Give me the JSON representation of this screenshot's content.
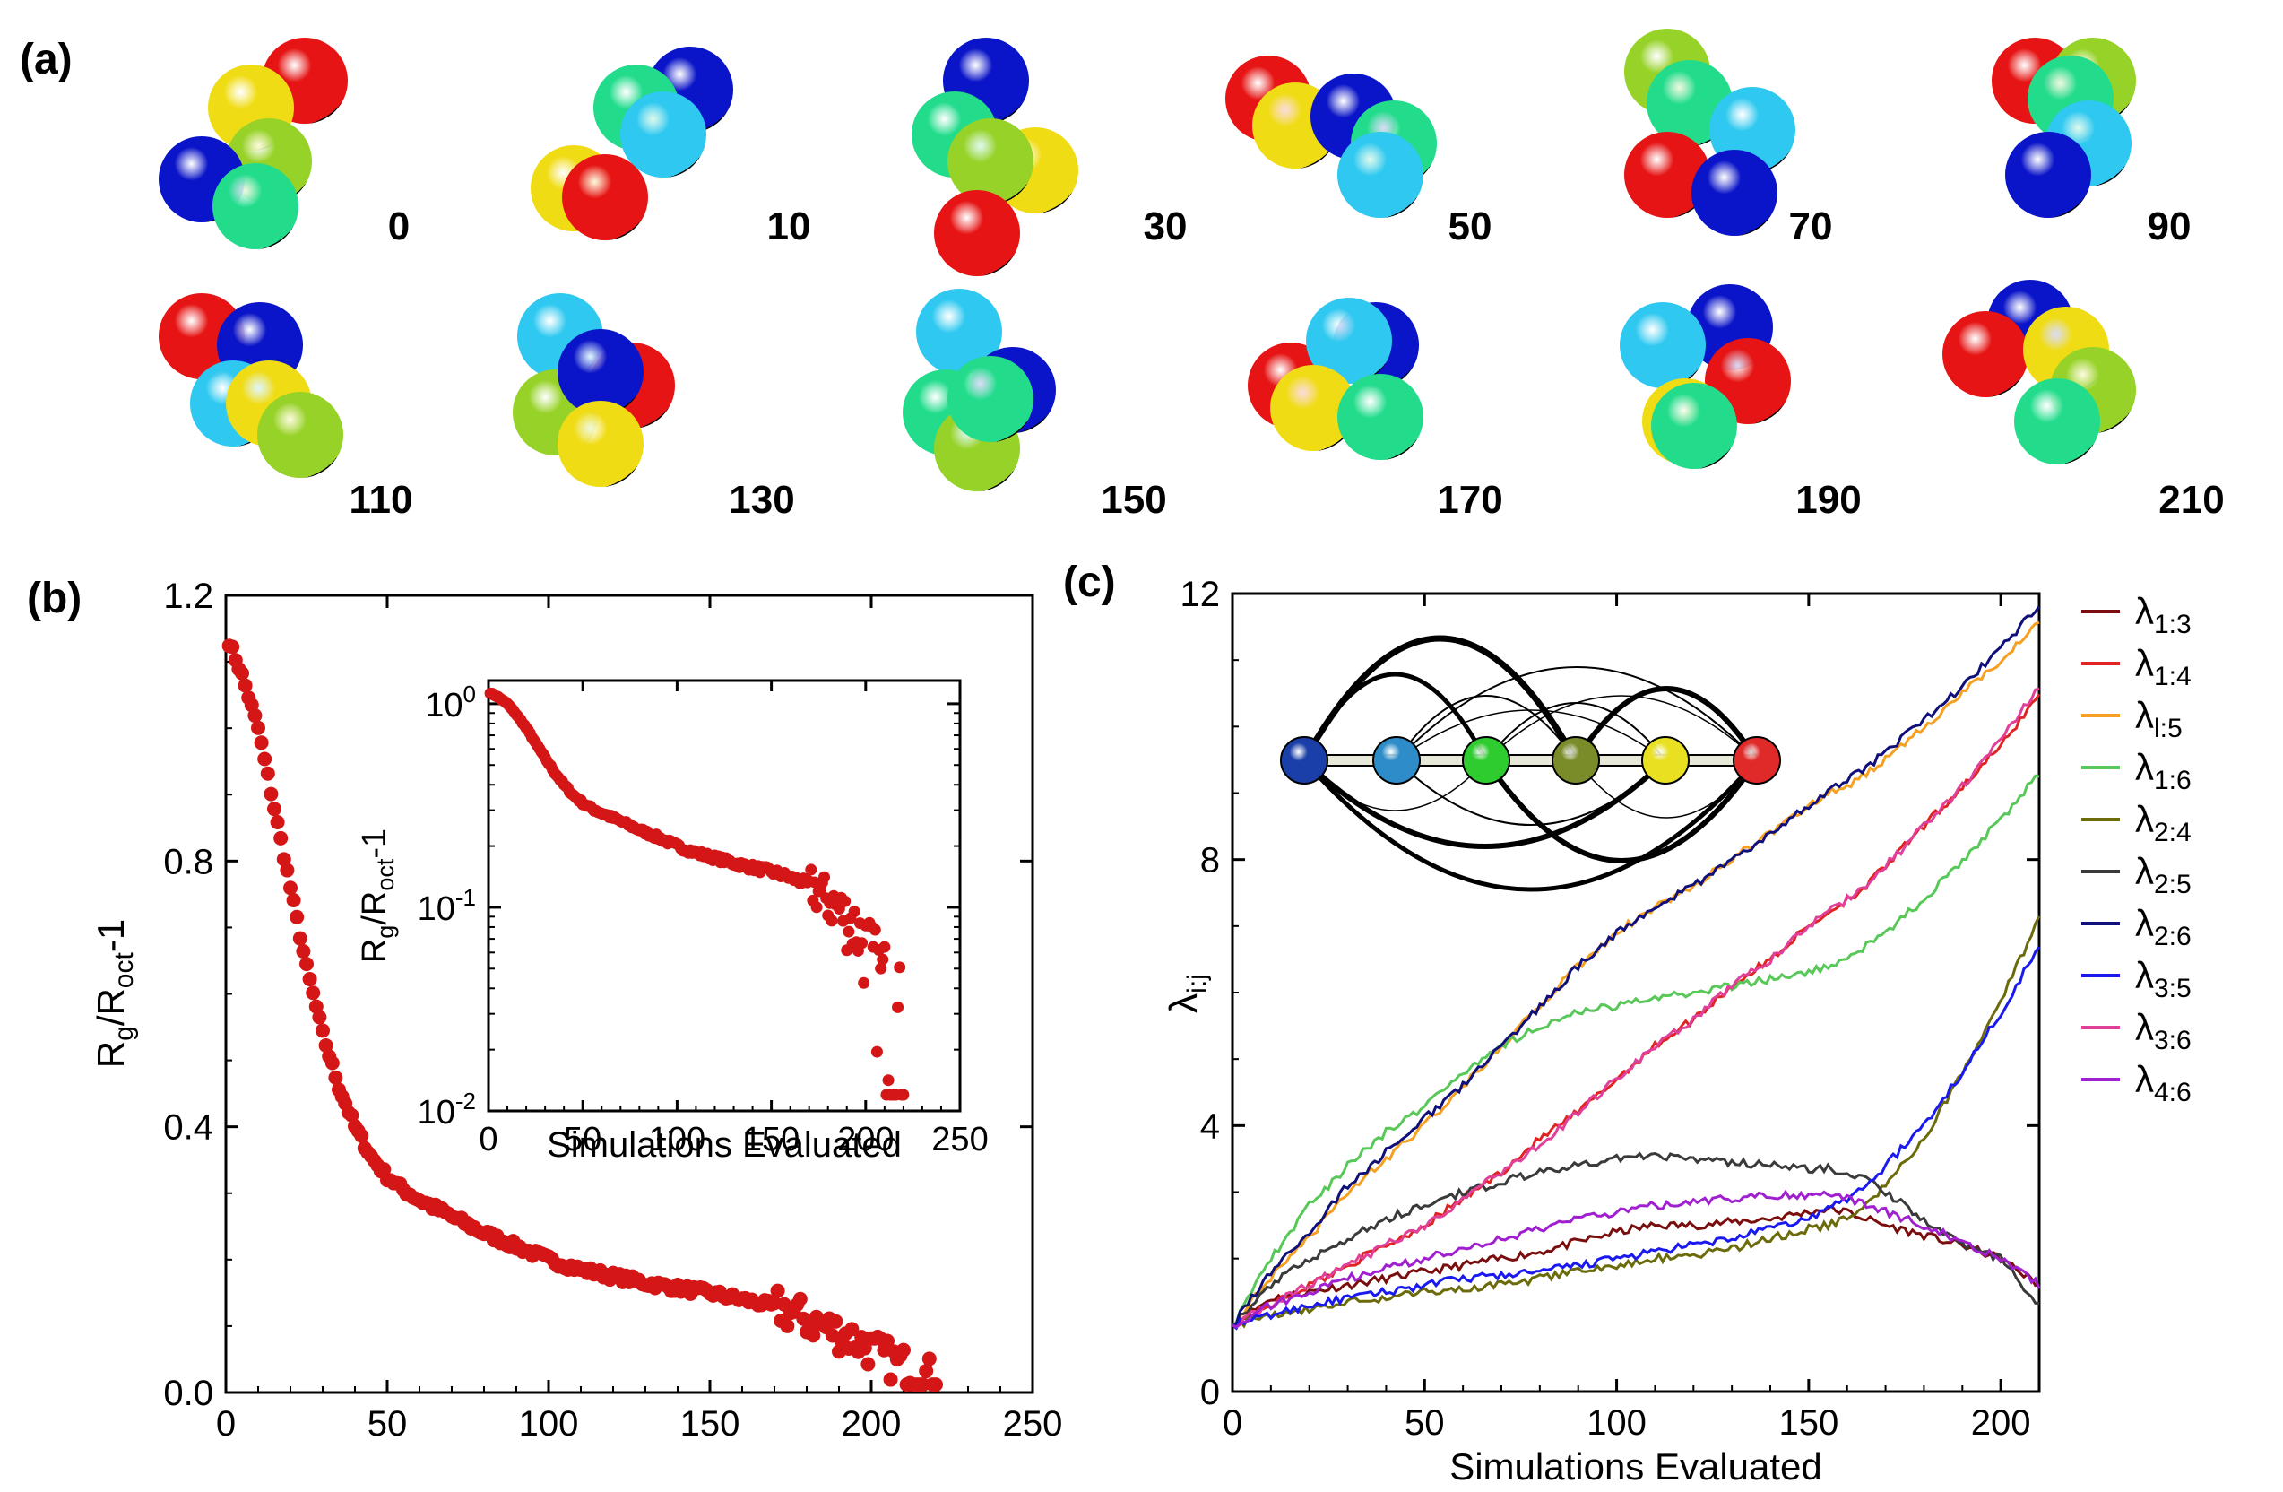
{
  "panel_a": {
    "label": "(a)",
    "colors": [
      "#0a14c8",
      "#2ec8f0",
      "#22dc8c",
      "#96d228",
      "#f0dc14",
      "#e61414"
    ],
    "frames": [
      {
        "label": "0",
        "colors": [
          "#e61414",
          "#f0dc14",
          "#96d228",
          "#0a14c8",
          "#22dc8c"
        ]
      },
      {
        "label": "10",
        "colors": [
          "#0a14c8",
          "#22dc8c",
          "#2ec8f0",
          "#f0dc14",
          "#e61414"
        ]
      },
      {
        "label": "30",
        "colors": [
          "#0a14c8",
          "#22dc8c",
          "#f0dc14",
          "#96d228",
          "#e61414"
        ]
      },
      {
        "label": "50",
        "colors": [
          "#e61414",
          "#f0dc14",
          "#0a14c8",
          "#22dc8c",
          "#2ec8f0"
        ]
      },
      {
        "label": "70",
        "colors": [
          "#96d228",
          "#22dc8c",
          "#e61414",
          "#2ec8f0",
          "#0a14c8"
        ]
      },
      {
        "label": "90",
        "colors": [
          "#e61414",
          "#96d228",
          "#22dc8c",
          "#2ec8f0",
          "#0a14c8"
        ]
      },
      {
        "label": "110",
        "colors": [
          "#e61414",
          "#0a14c8",
          "#2ec8f0",
          "#f0dc14",
          "#96d228"
        ]
      },
      {
        "label": "130",
        "colors": [
          "#2ec8f0",
          "#96d228",
          "#e61414",
          "#0a14c8",
          "#f0dc14"
        ]
      },
      {
        "label": "150",
        "colors": [
          "#2ec8f0",
          "#22dc8c",
          "#0a14c8",
          "#96d228",
          "#22dc8c"
        ]
      },
      {
        "label": "170",
        "colors": [
          "#0a14c8",
          "#e61414",
          "#2ec8f0",
          "#f0dc14",
          "#22dc8c"
        ]
      },
      {
        "label": "190",
        "colors": [
          "#0a14c8",
          "#2ec8f0",
          "#e61414",
          "#f0dc14",
          "#22dc8c"
        ]
      },
      {
        "label": "210",
        "colors": [
          "#0a14c8",
          "#e61414",
          "#f0dc14",
          "#96d228",
          "#22dc8c"
        ]
      }
    ]
  },
  "chart_data": [
    {
      "panel": "(b)",
      "type": "scatter",
      "title": "",
      "xlabel": "",
      "ylabel_main": "R",
      "ylabel_sub1": "g",
      "ylabel_mid": "/R",
      "ylabel_sub2": "oct",
      "ylabel_end": "-1",
      "xlim": [
        0,
        250
      ],
      "ylim": [
        0,
        1.2
      ],
      "xticks": [
        "0",
        "50",
        "100",
        "150",
        "200",
        "250"
      ],
      "yticks": [
        "0.0",
        "0.4",
        "0.8",
        "1.2"
      ],
      "color": "#d41616",
      "data_description_note": "",
      "series": [
        {
          "anchors_x": [
            1,
            5,
            10,
            15,
            20,
            25,
            30,
            35,
            40,
            45,
            50,
            55,
            60,
            70,
            80,
            90,
            100,
            110,
            120,
            130,
            140,
            150,
            160,
            170,
            175,
            180,
            185,
            190,
            195,
            200,
            205,
            210,
            215,
            220
          ],
          "anchors_y": [
            1.13,
            1.08,
            1.0,
            0.88,
            0.76,
            0.64,
            0.54,
            0.46,
            0.4,
            0.355,
            0.325,
            0.305,
            0.29,
            0.265,
            0.24,
            0.22,
            0.2,
            0.185,
            0.175,
            0.165,
            0.157,
            0.15,
            0.14,
            0.13,
            0.12,
            0.11,
            0.1,
            0.09,
            0.08,
            0.065,
            0.05,
            0.04,
            0.03,
            0.02
          ]
        }
      ],
      "inset": {
        "type": "scatter",
        "xlabel": "Simulations Evaluated",
        "ylabel_main": "R",
        "ylabel_sub1": "g",
        "ylabel_mid": "/R",
        "ylabel_sub2": "oct",
        "ylabel_end": "-1",
        "xlim": [
          0,
          250
        ],
        "ylim": [
          0.01,
          1.3
        ],
        "yscale": "log",
        "xticks": [
          "0",
          "50",
          "100",
          "150",
          "200",
          "250"
        ],
        "yticks": [
          {
            "base": "10",
            "exp": "0",
            "value": 1
          },
          {
            "base": "10",
            "exp": "-1",
            "value": 0.1
          },
          {
            "base": "10",
            "exp": "-2",
            "value": 0.01
          }
        ]
      }
    },
    {
      "panel": "(c)",
      "type": "line",
      "title": "",
      "xlabel": "Simulations Evaluated",
      "ylabel_main": "λ",
      "ylabel_sub": "i:j",
      "xlim": [
        0,
        210
      ],
      "ylim": [
        0,
        12
      ],
      "xticks": [
        "0",
        "50",
        "100",
        "150",
        "200"
      ],
      "yticks": [
        "0",
        "4",
        "8",
        "12"
      ],
      "legend_position": "right",
      "x": [
        0,
        10,
        20,
        30,
        40,
        50,
        60,
        70,
        80,
        90,
        100,
        110,
        120,
        130,
        140,
        150,
        155,
        160,
        165,
        170,
        180,
        190,
        200,
        210
      ],
      "series": [
        {
          "name_main": "λ",
          "name_sub": "1:3",
          "color": "#7a0e0e",
          "values": [
            1.0,
            1.4,
            1.5,
            1.6,
            1.7,
            1.8,
            1.9,
            2.0,
            2.1,
            2.25,
            2.4,
            2.5,
            2.5,
            2.55,
            2.6,
            2.7,
            2.75,
            2.7,
            2.6,
            2.5,
            2.35,
            2.2,
            2.0,
            1.6
          ]
        },
        {
          "name_main": "λ",
          "name_sub": "1:4",
          "color": "#e02424",
          "values": [
            1.0,
            1.3,
            1.6,
            1.9,
            2.2,
            2.5,
            2.9,
            3.3,
            3.8,
            4.2,
            4.7,
            5.2,
            5.6,
            6.1,
            6.5,
            7.0,
            7.2,
            7.4,
            7.6,
            7.9,
            8.5,
            9.1,
            9.7,
            10.5
          ]
        },
        {
          "name_main": "λ",
          "name_sub": "l:5",
          "color": "#f5a020",
          "values": [
            1.0,
            1.7,
            2.3,
            3.0,
            3.5,
            4.0,
            4.6,
            5.2,
            5.8,
            6.4,
            6.9,
            7.3,
            7.6,
            8.0,
            8.4,
            8.8,
            9.0,
            9.1,
            9.3,
            9.5,
            10.0,
            10.5,
            11.0,
            11.6
          ]
        },
        {
          "name_main": "λ",
          "name_sub": "1:6",
          "color": "#58c858",
          "values": [
            1.0,
            2.0,
            2.8,
            3.4,
            3.9,
            4.3,
            4.8,
            5.2,
            5.5,
            5.7,
            5.8,
            5.9,
            6.0,
            6.1,
            6.2,
            6.3,
            6.4,
            6.5,
            6.7,
            6.9,
            7.4,
            8.0,
            8.6,
            9.3
          ]
        },
        {
          "name_main": "λ",
          "name_sub": "2:4",
          "color": "#6b6b0c",
          "values": [
            1.0,
            1.15,
            1.25,
            1.35,
            1.4,
            1.5,
            1.55,
            1.6,
            1.7,
            1.8,
            1.9,
            2.0,
            2.05,
            2.15,
            2.3,
            2.45,
            2.5,
            2.6,
            2.8,
            3.1,
            3.8,
            4.8,
            5.9,
            7.1
          ]
        },
        {
          "name_main": "λ",
          "name_sub": "2:5",
          "color": "#3a3a3a",
          "values": [
            1.0,
            1.6,
            2.0,
            2.3,
            2.6,
            2.8,
            3.0,
            3.15,
            3.3,
            3.4,
            3.5,
            3.55,
            3.5,
            3.45,
            3.4,
            3.35,
            3.35,
            3.3,
            3.2,
            3.0,
            2.6,
            2.2,
            2.0,
            1.3
          ]
        },
        {
          "name_main": "λ",
          "name_sub": "2:6",
          "color": "#10107a",
          "values": [
            1.0,
            1.8,
            2.4,
            3.1,
            3.6,
            4.1,
            4.6,
            5.2,
            5.8,
            6.4,
            6.9,
            7.3,
            7.6,
            8.0,
            8.4,
            8.8,
            9.0,
            9.2,
            9.4,
            9.6,
            10.1,
            10.6,
            11.2,
            11.8
          ]
        },
        {
          "name_main": "λ",
          "name_sub": "3:5",
          "color": "#1a1af0",
          "values": [
            1.0,
            1.15,
            1.3,
            1.4,
            1.5,
            1.6,
            1.7,
            1.75,
            1.8,
            1.9,
            2.0,
            2.1,
            2.2,
            2.3,
            2.45,
            2.6,
            2.75,
            2.9,
            3.1,
            3.4,
            4.0,
            4.8,
            5.7,
            6.7
          ]
        },
        {
          "name_main": "λ",
          "name_sub": "3:6",
          "color": "#e0409a",
          "values": [
            1.0,
            1.3,
            1.6,
            1.9,
            2.2,
            2.5,
            2.9,
            3.3,
            3.7,
            4.2,
            4.7,
            5.2,
            5.6,
            6.1,
            6.5,
            7.0,
            7.2,
            7.4,
            7.6,
            7.9,
            8.5,
            9.1,
            9.8,
            10.6
          ]
        },
        {
          "name_main": "λ",
          "name_sub": "4:6",
          "color": "#a020d0",
          "values": [
            1.0,
            1.3,
            1.5,
            1.7,
            1.85,
            2.0,
            2.15,
            2.3,
            2.45,
            2.6,
            2.7,
            2.8,
            2.85,
            2.9,
            2.95,
            2.95,
            2.95,
            2.9,
            2.8,
            2.7,
            2.5,
            2.25,
            2.0,
            1.6
          ]
        }
      ],
      "inset_network": {
        "nodes": [
          "#1a3fa8",
          "#2e8cc8",
          "#2ecc2e",
          "#7a8c2a",
          "#e8e020",
          "#e02a2a"
        ]
      }
    }
  ]
}
